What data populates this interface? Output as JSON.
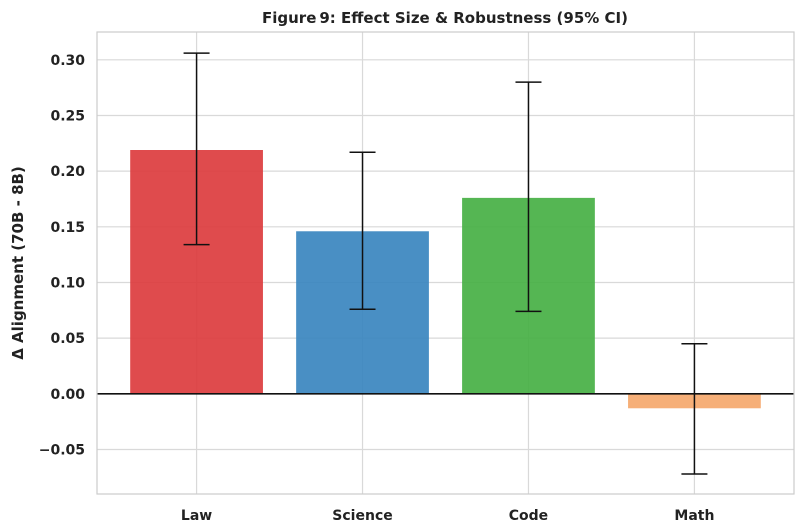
{
  "chart_data": {
    "type": "bar",
    "title": "Figure 9:  Effect Size & Robustness (95% CI)",
    "xlabel": "",
    "ylabel": "Δ Alignment (70B - 8B)",
    "categories": [
      "Law",
      "Science",
      "Code",
      "Math"
    ],
    "values": [
      0.219,
      0.146,
      0.176,
      -0.013
    ],
    "ci_lower": [
      0.134,
      0.076,
      0.074,
      -0.072
    ],
    "ci_upper": [
      0.306,
      0.217,
      0.28,
      0.045
    ],
    "colors": [
      "#dc3c3e",
      "#3a86bf",
      "#46b044",
      "#f5a86c"
    ],
    "ylim": [
      -0.09,
      0.325
    ],
    "yticks": [
      -0.05,
      0.0,
      0.05,
      0.1,
      0.15,
      0.2,
      0.25,
      0.3
    ],
    "ytick_labels": [
      "−0.05",
      "0.00",
      "0.05",
      "0.10",
      "0.15",
      "0.20",
      "0.25",
      "0.30"
    ],
    "grid": true,
    "zero_line": true
  }
}
